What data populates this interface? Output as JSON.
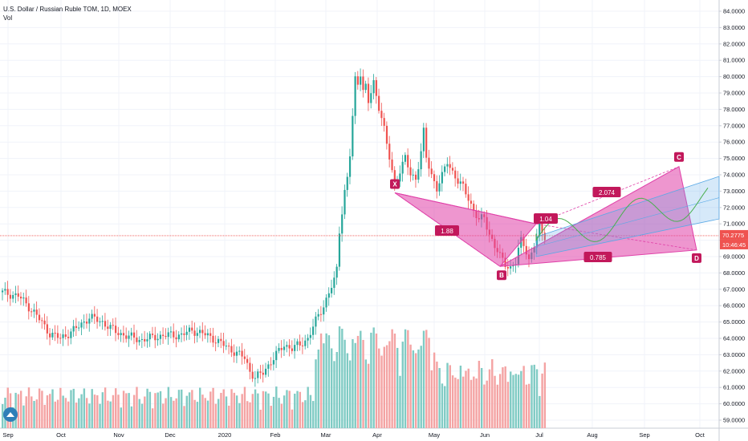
{
  "legend": {
    "symbol_line": "U.S. Dollar / Russian Ruble TOM, 1D, MOEX",
    "vol_label": "Vol"
  },
  "colors": {
    "up": "#26a69a",
    "down": "#ef5350",
    "vol_up": "#80cbc4",
    "vol_down": "#f4a3a3",
    "pattern": "#e040a8",
    "channel": "#5aa9e6",
    "price_line": "#ef5350",
    "projection": "#4caf50"
  },
  "chart_data": {
    "type": "candlestick",
    "title": "U.S. Dollar / Russian Ruble TOM, 1D, MOEX",
    "ylim": [
      58.6,
      84.3
    ],
    "y_ticks": [
      "84.0000",
      "83.0000",
      "82.0000",
      "81.0000",
      "80.0000",
      "79.0000",
      "78.0000",
      "77.0000",
      "76.0000",
      "75.0000",
      "74.0000",
      "73.0000",
      "72.0000",
      "71.0000",
      "70.0000",
      "69.0000",
      "68.0000",
      "67.0000",
      "66.0000",
      "65.0000",
      "64.0000",
      "63.0000",
      "62.0000",
      "61.0000",
      "60.0000",
      "59.0000"
    ],
    "x_ticks": [
      "Sep",
      "Oct",
      "Nov",
      "Dec",
      "2020",
      "Feb",
      "Mar",
      "Apr",
      "May",
      "Jun",
      "Jul",
      "Aug",
      "Sep",
      "Oct"
    ],
    "current_price": "70.2775",
    "countdown": "10:46:45",
    "price_path": [
      [
        0,
        66.8
      ],
      [
        6,
        66.6
      ],
      [
        12,
        65.6
      ],
      [
        18,
        64.3
      ],
      [
        22,
        64.0
      ],
      [
        28,
        64.6
      ],
      [
        33,
        65.3
      ],
      [
        38,
        65.0
      ],
      [
        43,
        64.4
      ],
      [
        48,
        64.1
      ],
      [
        53,
        63.9
      ],
      [
        58,
        64.1
      ],
      [
        63,
        64.2
      ],
      [
        68,
        64.2
      ],
      [
        72,
        64.5
      ],
      [
        76,
        64.3
      ],
      [
        80,
        64.0
      ],
      [
        84,
        63.6
      ],
      [
        88,
        63.2
      ],
      [
        92,
        62.8
      ],
      [
        94,
        62.0
      ],
      [
        96,
        61.6
      ],
      [
        99,
        61.9
      ],
      [
        102,
        62.6
      ],
      [
        104,
        63.0
      ],
      [
        107,
        63.6
      ],
      [
        110,
        63.4
      ],
      [
        113,
        63.6
      ],
      [
        116,
        64.0
      ],
      [
        120,
        65.4
      ],
      [
        122,
        66.0
      ],
      [
        124,
        66.8
      ],
      [
        126,
        67.5
      ],
      [
        127,
        68.2
      ],
      [
        128,
        70.6
      ],
      [
        129,
        71.8
      ],
      [
        130,
        73.0
      ],
      [
        131,
        73.8
      ],
      [
        132,
        75.2
      ],
      [
        133,
        77.5
      ],
      [
        134,
        79.8
      ],
      [
        135,
        79.6
      ],
      [
        136,
        80.3
      ],
      [
        137,
        79.2
      ],
      [
        138,
        79.4
      ],
      [
        139,
        78.4
      ],
      [
        140,
        79.0
      ],
      [
        141,
        79.6
      ],
      [
        142,
        78.8
      ],
      [
        143,
        78.2
      ],
      [
        144,
        77.6
      ],
      [
        145,
        76.8
      ],
      [
        146,
        75.8
      ],
      [
        147,
        75.0
      ],
      [
        148,
        74.2
      ],
      [
        149,
        73.4
      ],
      [
        150,
        73.8
      ],
      [
        151,
        74.3
      ],
      [
        153,
        75.0
      ],
      [
        155,
        74.0
      ],
      [
        157,
        73.8
      ],
      [
        159,
        75.4
      ],
      [
        160,
        76.6
      ],
      [
        161,
        75.0
      ],
      [
        163,
        74.0
      ],
      [
        165,
        73.2
      ],
      [
        167,
        73.9
      ],
      [
        169,
        74.8
      ],
      [
        171,
        74.2
      ],
      [
        173,
        73.6
      ],
      [
        175,
        73.2
      ],
      [
        177,
        72.6
      ],
      [
        179,
        71.8
      ],
      [
        181,
        71.2
      ],
      [
        183,
        71.4
      ],
      [
        185,
        70.4
      ],
      [
        187,
        69.6
      ],
      [
        189,
        69.0
      ],
      [
        191,
        68.6
      ],
      [
        193,
        68.3
      ],
      [
        195,
        68.6
      ],
      [
        196,
        69.4
      ],
      [
        197,
        70.0
      ],
      [
        198,
        69.8
      ],
      [
        199,
        69.4
      ],
      [
        200,
        68.8
      ],
      [
        201,
        69.1
      ],
      [
        202,
        69.6
      ],
      [
        203,
        70.2
      ],
      [
        204,
        70.9
      ],
      [
        205,
        70.5
      ],
      [
        206,
        70.3
      ]
    ],
    "harmonic_pattern": {
      "points": {
        "X": {
          "label": "X",
          "price": 72.9
        },
        "A": {
          "label": "",
          "price": 71.0
        },
        "B": {
          "label": "B",
          "price": 68.4
        },
        "C": {
          "label": "C",
          "price": 74.5
        },
        "D": {
          "label": "D",
          "price": 69.4
        }
      },
      "ratios": {
        "xab": "1.88",
        "abc": "1.04",
        "bcd": "2.074",
        "xad": "0.785"
      }
    }
  }
}
